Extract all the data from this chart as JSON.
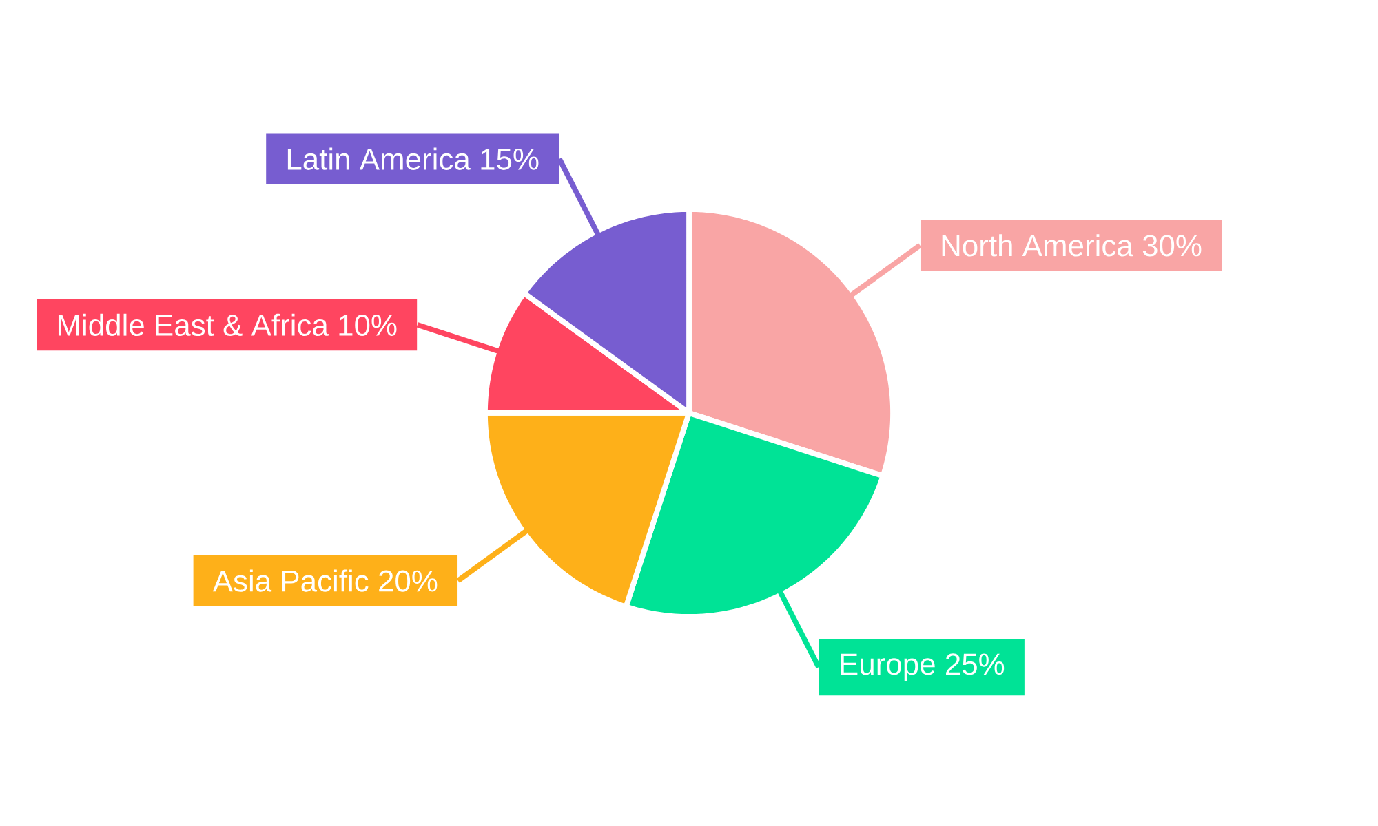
{
  "chart_data": {
    "type": "pie",
    "categories": [
      "North America",
      "Europe",
      "Asia Pacific",
      "Middle East & Africa",
      "Latin America"
    ],
    "values": [
      30,
      25,
      20,
      10,
      15
    ],
    "value_labels": [
      "30%",
      "25%",
      "20%",
      "10%",
      "15%"
    ],
    "colors": [
      "#f9a5a5",
      "#00e396",
      "#feb019",
      "#ff4560",
      "#775dd0"
    ]
  }
}
